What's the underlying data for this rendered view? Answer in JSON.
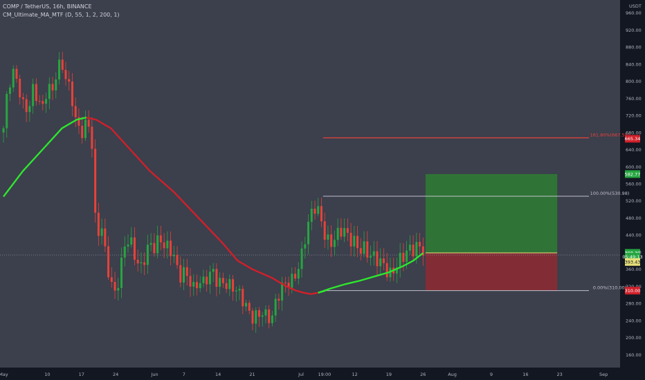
{
  "legend": {
    "symbol_line": "COMP / TetherUS, 16h, BINANCE",
    "indicator_line": "CM_Ultimate_MA_MTF (D, 55, 1, 2, 200, 1)"
  },
  "currency": "USDT",
  "colors": {
    "background": "#3c3f4c",
    "axis_bg": "#131722",
    "up": "#26a641",
    "down": "#e8423a",
    "ma_green": "#2ee62e",
    "ma_red": "#d0202a",
    "fib_line": "#c0c3cc",
    "fib_red": "#e8423a",
    "profit_zone": "#2e7d32",
    "loss_zone": "#8e2a33"
  },
  "chart_data": {
    "type": "candlestick",
    "symbol": "COMP / TetherUS",
    "ylim": [
      130,
      990
    ],
    "y_ticks": [
      "160.00",
      "200.00",
      "240.00",
      "280.00",
      "320.00",
      "360.00",
      "400.00",
      "440.00",
      "480.00",
      "520.00",
      "560.00",
      "600.00",
      "640.00",
      "680.00",
      "720.00",
      "760.00",
      "800.00",
      "840.00",
      "880.00",
      "920.00",
      "960.00"
    ],
    "x_ticks": [
      {
        "label": "May",
        "day": 0
      },
      {
        "label": "10",
        "day": 9
      },
      {
        "label": "17",
        "day": 16
      },
      {
        "label": "24",
        "day": 23
      },
      {
        "label": "Jun",
        "day": 31
      },
      {
        "label": "7",
        "day": 37
      },
      {
        "label": "14",
        "day": 44
      },
      {
        "label": "21",
        "day": 51
      },
      {
        "label": "Jul",
        "day": 61
      },
      {
        "label": "19:00",
        "day": 65.8
      },
      {
        "label": "12",
        "day": 72
      },
      {
        "label": "19",
        "day": 79
      },
      {
        "label": "26",
        "day": 86
      },
      {
        "label": "Aug",
        "day": 92
      },
      {
        "label": "9",
        "day": 100
      },
      {
        "label": "16",
        "day": 107
      },
      {
        "label": "23",
        "day": 114
      },
      {
        "label": "Sep",
        "day": 123
      }
    ],
    "candle_anchors": [
      [
        0,
        690
      ],
      [
        1,
        800
      ],
      [
        2,
        830
      ],
      [
        3,
        800
      ],
      [
        4,
        740
      ],
      [
        5,
        720
      ],
      [
        6,
        770
      ],
      [
        7,
        760
      ],
      [
        8,
        740
      ],
      [
        9,
        800
      ],
      [
        10,
        780
      ],
      [
        11,
        830
      ],
      [
        12,
        830
      ],
      [
        13,
        790
      ],
      [
        14,
        760
      ],
      [
        15,
        700
      ],
      [
        16,
        690
      ],
      [
        17,
        710
      ],
      [
        18,
        690
      ],
      [
        19,
        420
      ],
      [
        20,
        460
      ],
      [
        21,
        380
      ],
      [
        22,
        330
      ],
      [
        23,
        310
      ],
      [
        24,
        370
      ],
      [
        25,
        430
      ],
      [
        26,
        420
      ],
      [
        27,
        380
      ],
      [
        28,
        350
      ],
      [
        29,
        390
      ],
      [
        30,
        430
      ],
      [
        31,
        420
      ],
      [
        32,
        440
      ],
      [
        33,
        410
      ],
      [
        34,
        400
      ],
      [
        35,
        380
      ],
      [
        36,
        340
      ],
      [
        37,
        360
      ],
      [
        38,
        350
      ],
      [
        39,
        320
      ],
      [
        40,
        330
      ],
      [
        41,
        320
      ],
      [
        42,
        335
      ],
      [
        43,
        350
      ],
      [
        44,
        330
      ],
      [
        45,
        340
      ],
      [
        46,
        330
      ],
      [
        47,
        320
      ],
      [
        48,
        300
      ],
      [
        49,
        280
      ],
      [
        50,
        260
      ],
      [
        51,
        250
      ],
      [
        52,
        260
      ],
      [
        53,
        270
      ],
      [
        54,
        250
      ],
      [
        55,
        240
      ],
      [
        56,
        280
      ],
      [
        57,
        310
      ],
      [
        58,
        330
      ],
      [
        59,
        340
      ],
      [
        60,
        360
      ],
      [
        61,
        390
      ],
      [
        62,
        440
      ],
      [
        63,
        480
      ],
      [
        64,
        500
      ],
      [
        65,
        480
      ],
      [
        66,
        440
      ],
      [
        67,
        430
      ],
      [
        68,
        440
      ],
      [
        69,
        450
      ],
      [
        70,
        440
      ],
      [
        71,
        420
      ],
      [
        72,
        420
      ],
      [
        73,
        410
      ],
      [
        74,
        420
      ],
      [
        75,
        400
      ],
      [
        76,
        390
      ],
      [
        77,
        370
      ],
      [
        78,
        360
      ],
      [
        79,
        340
      ],
      [
        80,
        360
      ],
      [
        81,
        390
      ],
      [
        82,
        400
      ],
      [
        83,
        410
      ],
      [
        84,
        400
      ],
      [
        85,
        405
      ],
      [
        86,
        398
      ]
    ],
    "ma_200": [
      [
        0,
        530
      ],
      [
        4,
        590
      ],
      [
        8,
        640
      ],
      [
        12,
        690
      ],
      [
        15,
        710
      ],
      [
        17,
        715
      ],
      [
        19,
        710
      ],
      [
        22,
        690
      ],
      [
        26,
        640
      ],
      [
        30,
        590
      ],
      [
        35,
        540
      ],
      [
        40,
        480
      ],
      [
        45,
        420
      ],
      [
        48,
        380
      ],
      [
        51,
        360
      ],
      [
        55,
        340
      ],
      [
        58,
        320
      ],
      [
        60,
        310
      ],
      [
        61.5,
        305
      ],
      [
        63,
        302
      ],
      [
        64.5,
        305
      ],
      [
        66,
        310
      ]
    ],
    "ma_55": [
      [
        64.5,
        305
      ],
      [
        67,
        315
      ],
      [
        70,
        325
      ],
      [
        73,
        333
      ],
      [
        76,
        343
      ],
      [
        79,
        353
      ],
      [
        82,
        368
      ],
      [
        84,
        380
      ],
      [
        86,
        398
      ]
    ],
    "fib_levels": [
      {
        "label": "161.80%(667.55)",
        "value": 667.55,
        "start_day": 65.5,
        "end_day": 120,
        "color": "fib_red"
      },
      {
        "label": "100.00%(530.98)",
        "value": 530.98,
        "start_day": 65.5,
        "end_day": 120,
        "color": "fib_line"
      },
      {
        "label": "0.00%(310.00)",
        "value": 310.0,
        "start_day": 65.5,
        "end_day": 120,
        "color": "fib_line"
      }
    ],
    "position": {
      "start_day": 86.5,
      "end_day": 113.5,
      "target": 582.77,
      "entry": 398.39,
      "stop": 310.0,
      "current": 393.43
    },
    "price_tags": [
      {
        "value": 665.34,
        "label": "665.34",
        "bg": "#d0202a",
        "fg": "#ffffff"
      },
      {
        "value": 582.77,
        "label": "582.77",
        "bg": "#26a641",
        "fg": "#ffffff"
      },
      {
        "value": 398.39,
        "label": "398.39",
        "bg": "#26a641",
        "fg": "#ffffff"
      },
      {
        "value": 389.4,
        "label": "05:49:13",
        "bg": "#26a641",
        "fg": "#ffffff"
      },
      {
        "value": 377.0,
        "label": "393.43",
        "bg": "#e6e07a",
        "fg": "#131722"
      },
      {
        "value": 310.0,
        "label": "310.00",
        "bg": "#d0202a",
        "fg": "#ffffff"
      }
    ]
  }
}
